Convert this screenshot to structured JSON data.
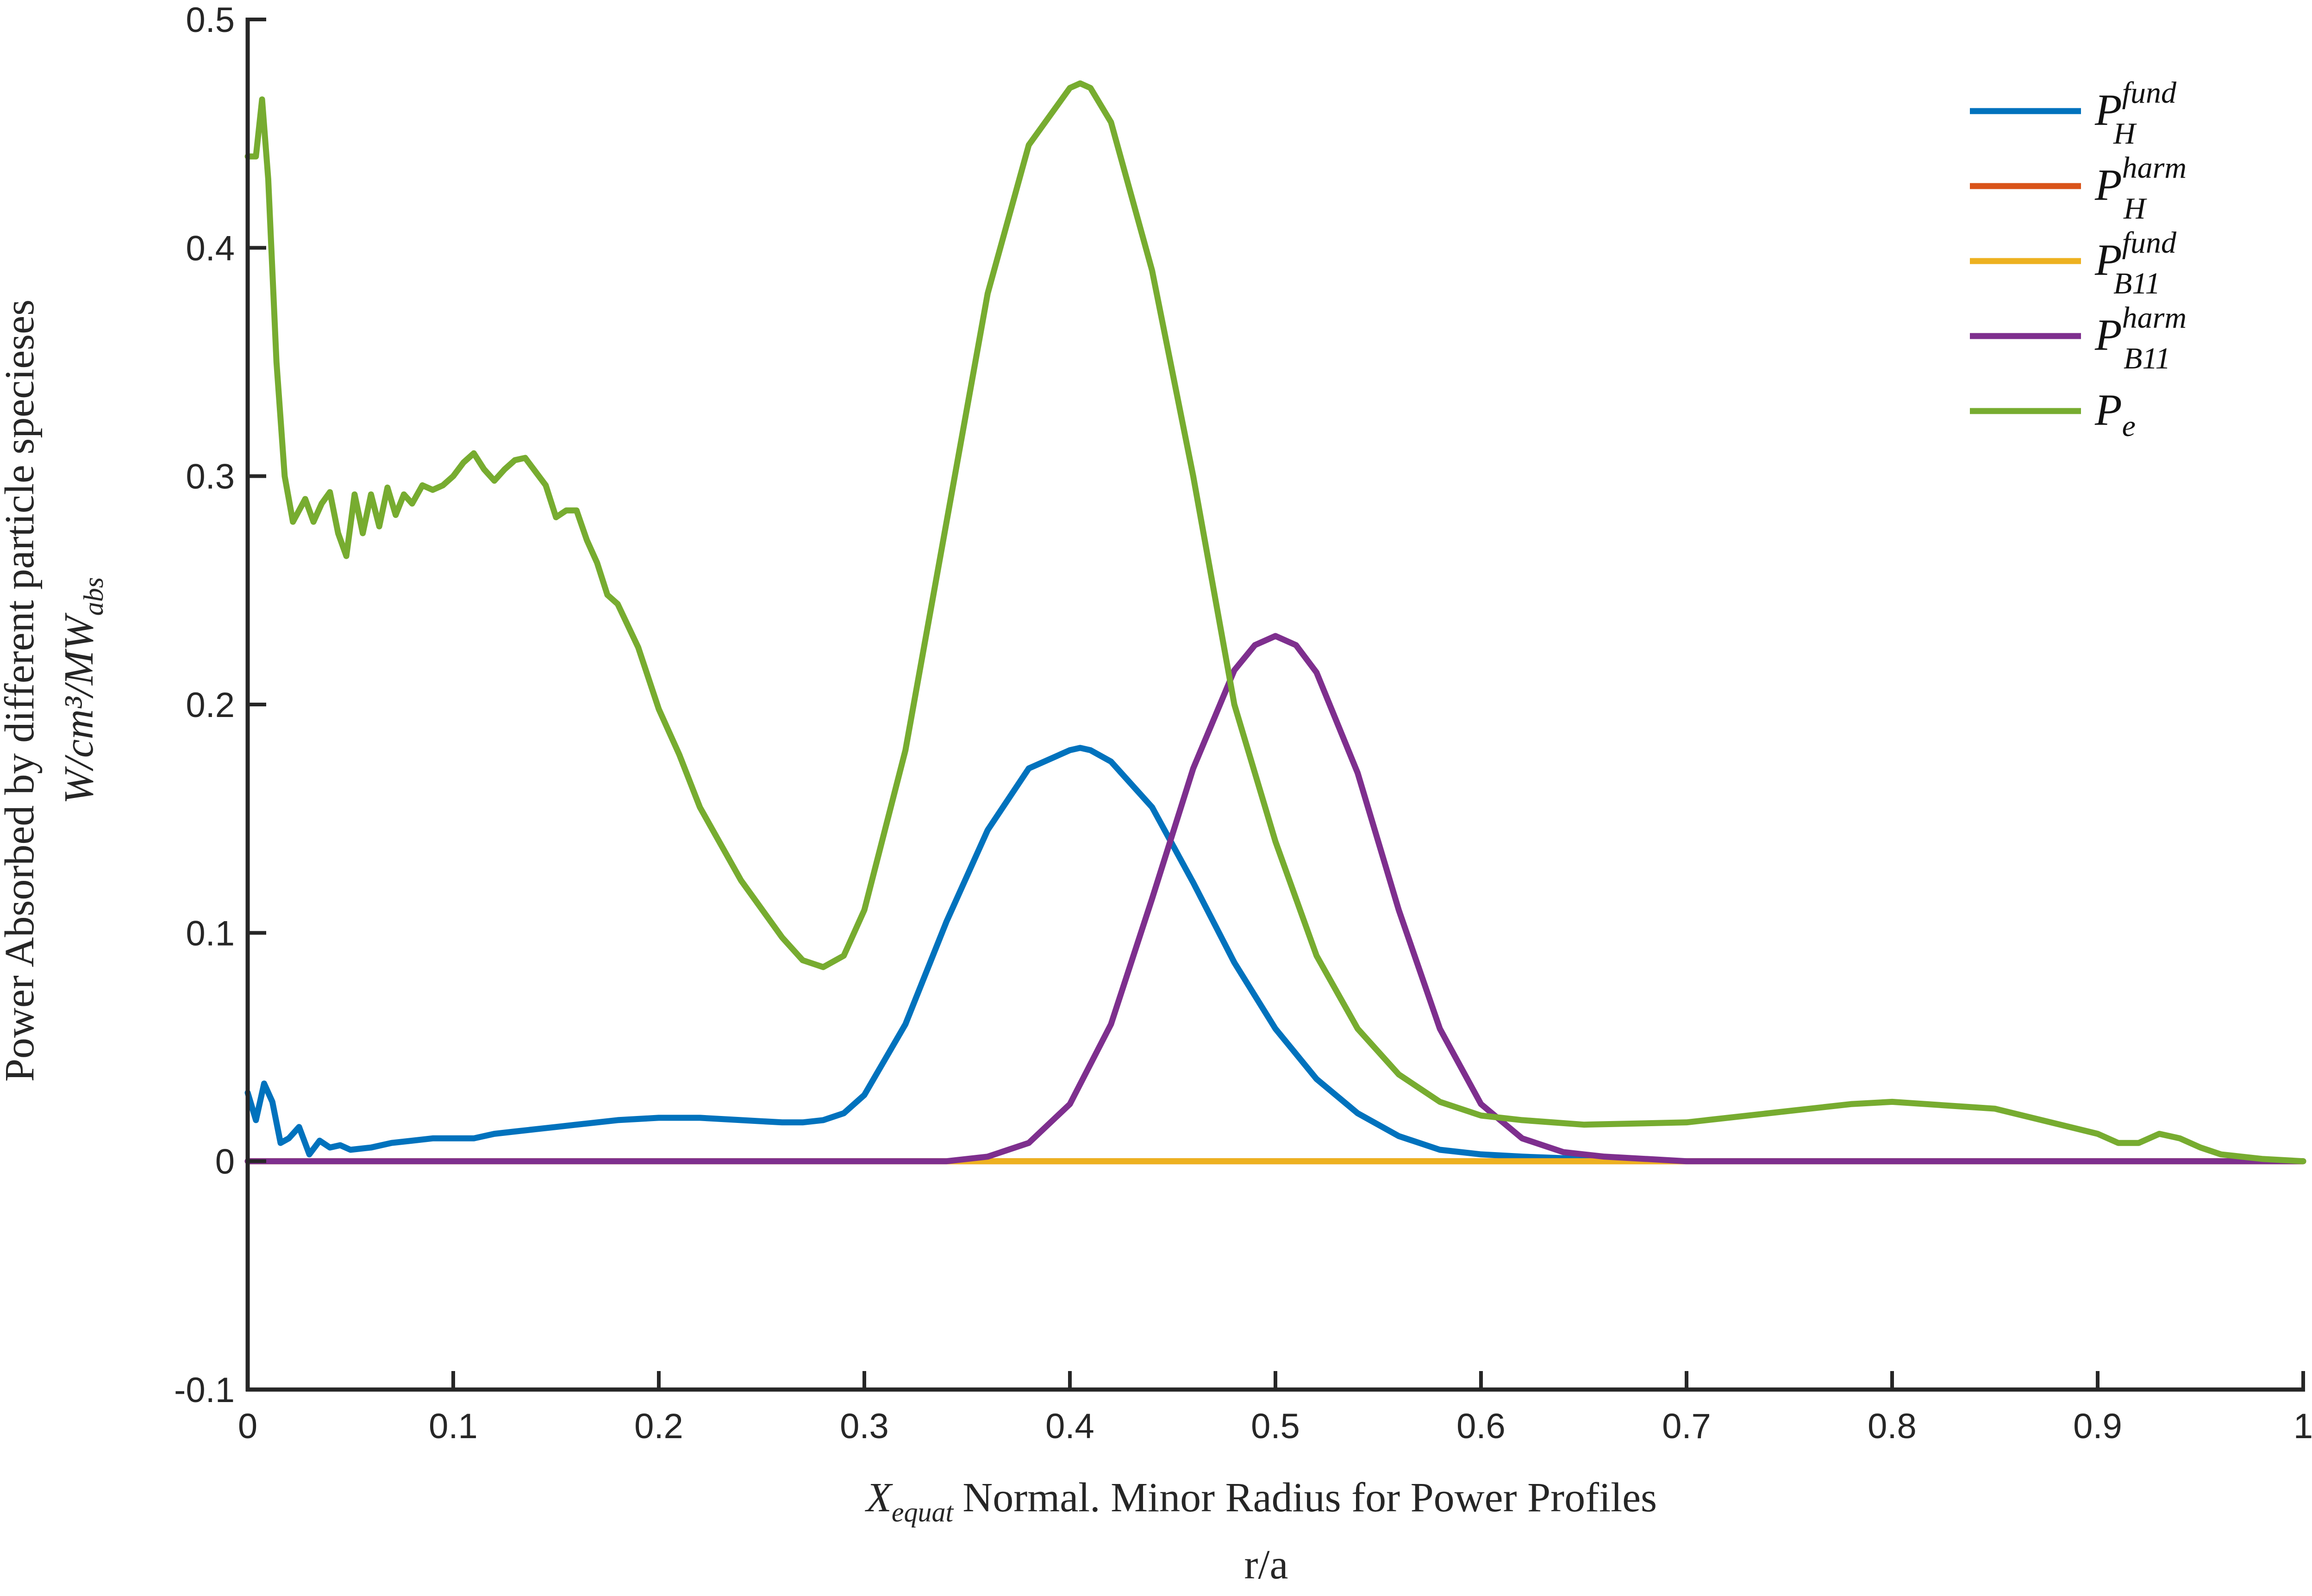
{
  "chart_data": {
    "type": "line",
    "xlabel_var": "X",
    "xlabel_var_sub": "equat",
    "xlabel": "Normal. Minor Radius for Power Profiles",
    "xlabel2": "r/a",
    "ylabel": "Power Absorbed by different particle specieses",
    "ylabel_units": "W/cm³/MW",
    "ylabel_units_sub": "abs",
    "xlim": [
      0,
      1
    ],
    "ylim": [
      -0.1,
      0.5
    ],
    "xticks": [
      0,
      0.1,
      0.2,
      0.3,
      0.4,
      0.5,
      0.6,
      0.7,
      0.8,
      0.9,
      1
    ],
    "xtick_labels": [
      "0",
      "0.1",
      "0.2",
      "0.3",
      "0.4",
      "0.5",
      "0.6",
      "0.7",
      "0.8",
      "0.9",
      "1"
    ],
    "yticks": [
      -0.1,
      0,
      0.1,
      0.2,
      0.3,
      0.4,
      0.5
    ],
    "ytick_labels": [
      "-0.1",
      "0",
      "0.1",
      "0.2",
      "0.3",
      "0.4",
      "0.5"
    ],
    "grid": false,
    "legend_position": "top-right",
    "series": [
      {
        "name": "P_H^fund",
        "base": "P",
        "sub": "H",
        "sup": "fund",
        "color": "#0072BD",
        "x": [
          0.0,
          0.004,
          0.008,
          0.012,
          0.016,
          0.02,
          0.025,
          0.03,
          0.035,
          0.04,
          0.045,
          0.05,
          0.06,
          0.07,
          0.08,
          0.09,
          0.1,
          0.11,
          0.12,
          0.13,
          0.14,
          0.15,
          0.16,
          0.18,
          0.2,
          0.22,
          0.24,
          0.26,
          0.27,
          0.28,
          0.29,
          0.3,
          0.32,
          0.34,
          0.36,
          0.38,
          0.4,
          0.405,
          0.41,
          0.42,
          0.44,
          0.46,
          0.48,
          0.5,
          0.52,
          0.54,
          0.56,
          0.58,
          0.6,
          0.62,
          0.65,
          0.7,
          0.8,
          0.9,
          1.0
        ],
        "y": [
          0.03,
          0.018,
          0.034,
          0.026,
          0.008,
          0.01,
          0.015,
          0.003,
          0.009,
          0.006,
          0.007,
          0.005,
          0.006,
          0.008,
          0.009,
          0.01,
          0.01,
          0.01,
          0.012,
          0.013,
          0.014,
          0.015,
          0.016,
          0.018,
          0.019,
          0.019,
          0.018,
          0.017,
          0.017,
          0.018,
          0.021,
          0.029,
          0.06,
          0.105,
          0.145,
          0.172,
          0.18,
          0.181,
          0.18,
          0.175,
          0.155,
          0.122,
          0.087,
          0.058,
          0.036,
          0.021,
          0.011,
          0.005,
          0.003,
          0.002,
          0.001,
          0.0,
          0.0,
          0.0,
          0.0
        ]
      },
      {
        "name": "P_H^harm",
        "base": "P",
        "sub": "H",
        "sup": "harm",
        "color": "#D95319",
        "x": [
          0,
          1
        ],
        "y": [
          0,
          0
        ]
      },
      {
        "name": "P_B11^fund",
        "base": "P",
        "sub": "B11",
        "sup": "fund",
        "color": "#EDB120",
        "x": [
          0,
          1
        ],
        "y": [
          0,
          0
        ]
      },
      {
        "name": "P_B11^harm",
        "base": "P",
        "sub": "B11",
        "sup": "harm",
        "color": "#7E2F8E",
        "x": [
          0.0,
          0.3,
          0.34,
          0.36,
          0.38,
          0.4,
          0.42,
          0.44,
          0.46,
          0.48,
          0.49,
          0.5,
          0.51,
          0.52,
          0.54,
          0.56,
          0.58,
          0.6,
          0.62,
          0.64,
          0.66,
          0.68,
          0.7,
          0.8,
          0.9,
          1.0
        ],
        "y": [
          0.0,
          0.0,
          0.0,
          0.002,
          0.008,
          0.025,
          0.06,
          0.115,
          0.172,
          0.215,
          0.226,
          0.23,
          0.226,
          0.214,
          0.17,
          0.11,
          0.058,
          0.025,
          0.01,
          0.004,
          0.002,
          0.001,
          0.0,
          0.0,
          0.0,
          0.0
        ]
      },
      {
        "name": "P_e",
        "base": "P",
        "sub": "e",
        "sup": "",
        "color": "#77AC30",
        "x": [
          0.0,
          0.004,
          0.007,
          0.01,
          0.014,
          0.018,
          0.022,
          0.025,
          0.028,
          0.032,
          0.036,
          0.04,
          0.044,
          0.048,
          0.052,
          0.056,
          0.06,
          0.064,
          0.068,
          0.072,
          0.076,
          0.08,
          0.085,
          0.09,
          0.095,
          0.1,
          0.105,
          0.11,
          0.115,
          0.12,
          0.125,
          0.13,
          0.135,
          0.14,
          0.145,
          0.15,
          0.155,
          0.16,
          0.165,
          0.17,
          0.175,
          0.18,
          0.19,
          0.2,
          0.21,
          0.22,
          0.24,
          0.26,
          0.27,
          0.28,
          0.29,
          0.3,
          0.32,
          0.34,
          0.36,
          0.38,
          0.4,
          0.405,
          0.41,
          0.42,
          0.44,
          0.46,
          0.48,
          0.5,
          0.52,
          0.54,
          0.56,
          0.58,
          0.6,
          0.62,
          0.65,
          0.7,
          0.75,
          0.78,
          0.8,
          0.85,
          0.9,
          0.91,
          0.92,
          0.93,
          0.94,
          0.95,
          0.96,
          0.97,
          0.98,
          1.0
        ],
        "y": [
          0.44,
          0.44,
          0.465,
          0.43,
          0.35,
          0.3,
          0.28,
          0.285,
          0.29,
          0.28,
          0.288,
          0.293,
          0.275,
          0.265,
          0.292,
          0.275,
          0.292,
          0.278,
          0.295,
          0.283,
          0.292,
          0.288,
          0.296,
          0.294,
          0.296,
          0.3,
          0.306,
          0.31,
          0.303,
          0.298,
          0.303,
          0.307,
          0.308,
          0.302,
          0.296,
          0.282,
          0.285,
          0.285,
          0.272,
          0.262,
          0.248,
          0.244,
          0.225,
          0.198,
          0.178,
          0.155,
          0.123,
          0.098,
          0.088,
          0.085,
          0.09,
          0.11,
          0.18,
          0.28,
          0.38,
          0.445,
          0.47,
          0.472,
          0.47,
          0.455,
          0.39,
          0.3,
          0.2,
          0.14,
          0.09,
          0.058,
          0.038,
          0.026,
          0.02,
          0.018,
          0.016,
          0.017,
          0.022,
          0.025,
          0.026,
          0.023,
          0.012,
          0.008,
          0.008,
          0.012,
          0.01,
          0.006,
          0.003,
          0.002,
          0.001,
          0.0
        ]
      }
    ]
  }
}
